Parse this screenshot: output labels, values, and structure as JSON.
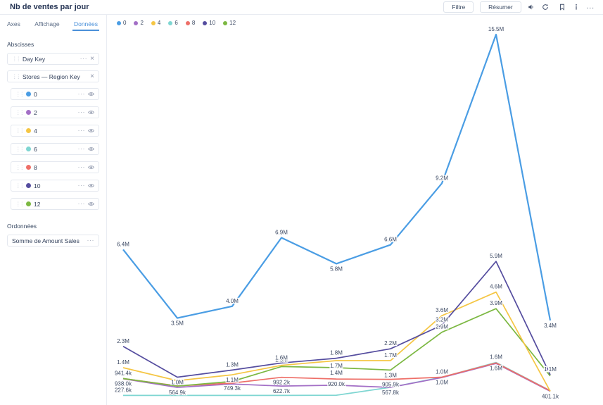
{
  "header": {
    "title": "Nb de ventes par jour",
    "filter_label": "Filtre",
    "resume_label": "Résumer",
    "more_label": "..."
  },
  "sidebar": {
    "tabs": [
      {
        "label": "Axes",
        "active": false
      },
      {
        "label": "Affichage",
        "active": false
      },
      {
        "label": "Données",
        "active": true
      }
    ],
    "abscisses_label": "Abscisses",
    "fields": [
      {
        "label": "Day Key",
        "has_menu": true,
        "has_close": true
      },
      {
        "label": "Stores — Region Key",
        "has_menu": false,
        "has_close": true
      }
    ],
    "ordonnees_label": "Ordonnées",
    "ordonnees_field": "Somme de Amount Sales"
  },
  "colors": {
    "accent_blue": "#4a90d9",
    "text_dark": "#243353",
    "border": "#e9ecf2"
  },
  "chart_data": {
    "type": "line",
    "title": "Nb de ventes par jour",
    "x_tick_labels_visible": false,
    "points_per_series": 9,
    "legend_position": "top-left",
    "grid": false,
    "ylim_millions": [
      0,
      16.5
    ],
    "series": [
      {
        "key": "0",
        "color": "#4a9de4",
        "values_m": [
          6.4,
          3.5,
          4.0,
          6.9,
          5.8,
          6.6,
          9.2,
          15.5,
          3.4
        ],
        "labels": [
          "6.4M",
          "3.5M",
          "4.0M",
          "6.9M",
          "5.8M",
          "6.6M",
          "9.2M",
          "15.5M",
          "3.4M"
        ],
        "sides": [
          "a",
          "b",
          "a",
          "a",
          "b",
          "a",
          "a",
          "a",
          "b"
        ]
      },
      {
        "key": "2",
        "color": "#a36fc6",
        "values_m": [
          0.93,
          0.5649,
          0.71,
          0.6227,
          0.66,
          0.5678,
          0.98,
          1.58,
          0.4011
        ],
        "labels": [
          null,
          "564.9k",
          null,
          "622.7k",
          null,
          "567.8k",
          null,
          null,
          "401.1k"
        ],
        "sides": [
          null,
          "b",
          null,
          "b",
          null,
          "b",
          null,
          null,
          "b"
        ]
      },
      {
        "key": "4",
        "color": "#f5c644",
        "values_m": [
          1.4,
          0.85,
          1.1,
          1.5,
          1.7,
          1.7,
          3.6,
          4.6,
          0.4011
        ],
        "labels": [
          "1.4M",
          null,
          "1.1M",
          "1.5M",
          "1.7M",
          "1.7M",
          "3.6M",
          "4.6M",
          null
        ],
        "sides": [
          "a",
          null,
          "b",
          "a",
          "b",
          "a",
          "a",
          "a",
          null
        ]
      },
      {
        "key": "6",
        "color": "#7fd6d2",
        "values_m": [
          0.2276,
          0.227,
          0.227,
          0.227,
          0.235,
          0.57,
          1.0,
          1.62,
          0.43
        ],
        "labels": [
          "227.6k",
          null,
          null,
          null,
          null,
          null,
          "1.0M",
          "1.6M",
          null
        ],
        "sides": [
          "a",
          null,
          null,
          null,
          null,
          null,
          "b",
          "a",
          null
        ]
      },
      {
        "key": "8",
        "color": "#ee6f68",
        "values_m": [
          0.938,
          0.63,
          0.7493,
          0.9922,
          0.92,
          0.9059,
          1.0,
          1.6,
          0.42
        ],
        "labels": [
          "938.0k",
          null,
          "749.3k",
          "992.2k",
          "920.0k",
          "905.9k",
          "1.0M",
          "1.6M",
          null
        ],
        "sides": [
          "b",
          null,
          "b",
          "b",
          "b",
          "b",
          "a",
          "b",
          null
        ]
      },
      {
        "key": "10",
        "color": "#554d9f",
        "values_m": [
          2.3,
          1.0,
          1.3,
          1.6,
          1.8,
          2.2,
          3.2,
          5.9,
          1.1
        ],
        "labels": [
          "2.3M",
          "1.0M",
          "1.3M",
          "1.6M",
          "1.8M",
          "2.2M",
          "3.2M",
          "5.9M",
          "1.1M"
        ],
        "sides": [
          "a",
          "b",
          "a",
          "a",
          "a",
          "a",
          "a",
          "a",
          "a"
        ]
      },
      {
        "key": "12",
        "color": "#7cb842",
        "values_m": [
          0.9414,
          0.62,
          0.82,
          1.45,
          1.4,
          1.3,
          2.9,
          3.9,
          1.05
        ],
        "labels": [
          "941.4k",
          null,
          null,
          null,
          "1.4M",
          "1.3M",
          "2.9M",
          "3.9M",
          null
        ],
        "sides": [
          "a",
          null,
          null,
          null,
          "b",
          "b",
          "a",
          "a",
          null
        ]
      }
    ]
  }
}
